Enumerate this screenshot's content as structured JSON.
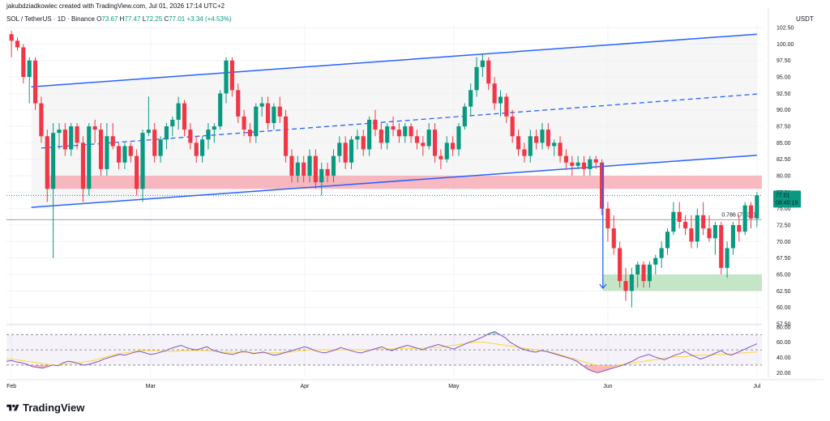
{
  "header": {
    "creator_line": "jakubdziadkowiec created with TradingView.com, Jul 01, 2026 17:14 UTC+2",
    "symbol": "SOL / TetherUS · 1D · Binance",
    "ohlc": [
      {
        "label": "O",
        "value": "73.67"
      },
      {
        "label": "H",
        "value": "77.47"
      },
      {
        "label": "L",
        "value": "72.25"
      },
      {
        "label": "C",
        "value": "77.01"
      }
    ],
    "change": "+3.34 (+4.53%)",
    "currency": "USDT"
  },
  "footer": {
    "logo_text": "TradingView"
  },
  "colors": {
    "up": "#089981",
    "down": "#f23645",
    "trendline": "#2962ff",
    "resistance_zone": "#f7a8b0",
    "support_zone": "#b7dfb9",
    "rsi_line": "#7e57c2",
    "rsi_ma": "#fdd835"
  },
  "chart_data": [
    {
      "type": "candlestick",
      "yticks": [
        "102.50",
        "100.00",
        "97.50",
        "95.00",
        "92.50",
        "90.00",
        "87.50",
        "85.00",
        "82.50",
        "80.00",
        "77.50",
        "75.00",
        "72.50",
        "70.00",
        "67.50",
        "65.00",
        "62.50",
        "60.00",
        "57.50"
      ],
      "ylim": [
        57.5,
        103
      ],
      "xticks": [
        "Feb",
        "Mar",
        "Apr",
        "May",
        "Jun",
        "Jul"
      ],
      "last_price": {
        "price": "77.01",
        "countdown": "08:45:15",
        "value": 77.01
      },
      "fib_level": {
        "label": "0.786 (73.31)",
        "value": 73.31
      },
      "zones": [
        {
          "kind": "resistance",
          "from": 78.0,
          "to": 80.0
        },
        {
          "kind": "support",
          "from": 62.5,
          "to": 65.0
        }
      ],
      "channel": {
        "upper": [
          {
            "date": "2026-02-05",
            "price": 93.5
          },
          {
            "date": "2026-07-01",
            "price": 101.5
          }
        ],
        "middle": [
          {
            "date": "2026-02-07",
            "price": 84.2
          },
          {
            "date": "2026-07-01",
            "price": 92.4
          }
        ],
        "lower": [
          {
            "date": "2026-02-05",
            "price": 75.2
          },
          {
            "date": "2026-07-01",
            "price": 83.1
          }
        ]
      },
      "target_arrow": {
        "date": "2026-05-31",
        "from": 82.0,
        "to": 62.9
      },
      "candles": [
        {
          "o": 101.5,
          "h": 102,
          "l": 98,
          "c": 100.5
        },
        {
          "o": 100.5,
          "h": 101,
          "l": 99,
          "c": 99.5
        },
        {
          "o": 99.5,
          "h": 100,
          "l": 94,
          "c": 95
        },
        {
          "o": 95,
          "h": 98,
          "l": 91,
          "c": 97.5
        },
        {
          "o": 97.5,
          "h": 98,
          "l": 90,
          "c": 91
        },
        {
          "o": 91,
          "h": 92,
          "l": 85,
          "c": 86
        },
        {
          "o": 86,
          "h": 87,
          "l": 76,
          "c": 78
        },
        {
          "o": 78,
          "h": 88,
          "l": 67.5,
          "c": 86.5
        },
        {
          "o": 86.5,
          "h": 88,
          "l": 84,
          "c": 87
        },
        {
          "o": 87,
          "h": 88,
          "l": 83,
          "c": 84
        },
        {
          "o": 84,
          "h": 88,
          "l": 83,
          "c": 87.5
        },
        {
          "o": 87.5,
          "h": 88,
          "l": 84,
          "c": 85
        },
        {
          "o": 85,
          "h": 86,
          "l": 76,
          "c": 78
        },
        {
          "o": 78,
          "h": 88,
          "l": 77,
          "c": 87.5
        },
        {
          "o": 87.5,
          "h": 88.5,
          "l": 85,
          "c": 87
        },
        {
          "o": 87,
          "h": 88,
          "l": 80,
          "c": 81
        },
        {
          "o": 81,
          "h": 88,
          "l": 80,
          "c": 86
        },
        {
          "o": 86,
          "h": 88,
          "l": 84,
          "c": 84.5
        },
        {
          "o": 84.5,
          "h": 85,
          "l": 81,
          "c": 82
        },
        {
          "o": 82,
          "h": 85,
          "l": 81,
          "c": 84.5
        },
        {
          "o": 84.5,
          "h": 85,
          "l": 82,
          "c": 83
        },
        {
          "o": 83,
          "h": 84,
          "l": 77,
          "c": 78
        },
        {
          "o": 78,
          "h": 87,
          "l": 76,
          "c": 86.5
        },
        {
          "o": 86.5,
          "h": 92,
          "l": 86,
          "c": 87
        },
        {
          "o": 87,
          "h": 88,
          "l": 82,
          "c": 83
        },
        {
          "o": 83,
          "h": 86,
          "l": 82,
          "c": 85.5
        },
        {
          "o": 85.5,
          "h": 88,
          "l": 84,
          "c": 87.5
        },
        {
          "o": 87.5,
          "h": 89,
          "l": 86,
          "c": 88.5
        },
        {
          "o": 88.5,
          "h": 92,
          "l": 87,
          "c": 91
        },
        {
          "o": 91,
          "h": 91.5,
          "l": 86,
          "c": 87
        },
        {
          "o": 87,
          "h": 88,
          "l": 84,
          "c": 85
        },
        {
          "o": 85,
          "h": 86,
          "l": 82,
          "c": 83
        },
        {
          "o": 83,
          "h": 86,
          "l": 82,
          "c": 85.5
        },
        {
          "o": 85.5,
          "h": 88,
          "l": 84,
          "c": 87
        },
        {
          "o": 87,
          "h": 88,
          "l": 85,
          "c": 87.5
        },
        {
          "o": 87.5,
          "h": 93,
          "l": 87,
          "c": 92.5
        },
        {
          "o": 92.5,
          "h": 98,
          "l": 91,
          "c": 97.5
        },
        {
          "o": 97.5,
          "h": 98,
          "l": 92,
          "c": 93
        },
        {
          "o": 93,
          "h": 94,
          "l": 88,
          "c": 89
        },
        {
          "o": 89,
          "h": 90,
          "l": 86,
          "c": 87
        },
        {
          "o": 87,
          "h": 88,
          "l": 85,
          "c": 86
        },
        {
          "o": 86,
          "h": 91,
          "l": 85,
          "c": 90.5
        },
        {
          "o": 90.5,
          "h": 92,
          "l": 89,
          "c": 91
        },
        {
          "o": 91,
          "h": 92,
          "l": 87,
          "c": 88
        },
        {
          "o": 88,
          "h": 91,
          "l": 87,
          "c": 90.5
        },
        {
          "o": 90.5,
          "h": 92,
          "l": 88,
          "c": 89
        },
        {
          "o": 89,
          "h": 90,
          "l": 82,
          "c": 83
        },
        {
          "o": 83,
          "h": 84,
          "l": 79,
          "c": 80
        },
        {
          "o": 80,
          "h": 83,
          "l": 79,
          "c": 82
        },
        {
          "o": 82,
          "h": 83,
          "l": 79,
          "c": 80
        },
        {
          "o": 80,
          "h": 84,
          "l": 79,
          "c": 83
        },
        {
          "o": 83,
          "h": 84,
          "l": 78,
          "c": 79
        },
        {
          "o": 79,
          "h": 82,
          "l": 77,
          "c": 81
        },
        {
          "o": 81,
          "h": 82,
          "l": 79,
          "c": 80
        },
        {
          "o": 80,
          "h": 84,
          "l": 79,
          "c": 83
        },
        {
          "o": 83,
          "h": 86,
          "l": 82,
          "c": 85
        },
        {
          "o": 85,
          "h": 86,
          "l": 81,
          "c": 82
        },
        {
          "o": 82,
          "h": 86,
          "l": 81,
          "c": 85.5
        },
        {
          "o": 85.5,
          "h": 87,
          "l": 84,
          "c": 86
        },
        {
          "o": 86,
          "h": 87,
          "l": 83,
          "c": 84
        },
        {
          "o": 84,
          "h": 89,
          "l": 83,
          "c": 88.5
        },
        {
          "o": 88.5,
          "h": 90,
          "l": 86,
          "c": 87
        },
        {
          "o": 87,
          "h": 88,
          "l": 84,
          "c": 85
        },
        {
          "o": 85,
          "h": 88,
          "l": 84,
          "c": 87.5
        },
        {
          "o": 87.5,
          "h": 89,
          "l": 86,
          "c": 87
        },
        {
          "o": 87,
          "h": 88,
          "l": 85,
          "c": 86
        },
        {
          "o": 86,
          "h": 88,
          "l": 85,
          "c": 87.5
        },
        {
          "o": 87.5,
          "h": 88,
          "l": 85,
          "c": 86
        },
        {
          "o": 86,
          "h": 87,
          "l": 84,
          "c": 85
        },
        {
          "o": 85,
          "h": 86,
          "l": 83,
          "c": 84.5
        },
        {
          "o": 84.5,
          "h": 88,
          "l": 84,
          "c": 87
        },
        {
          "o": 87,
          "h": 88,
          "l": 82,
          "c": 83
        },
        {
          "o": 83,
          "h": 84,
          "l": 81,
          "c": 82.5
        },
        {
          "o": 82.5,
          "h": 86,
          "l": 82,
          "c": 85
        },
        {
          "o": 85,
          "h": 86,
          "l": 83,
          "c": 84
        },
        {
          "o": 84,
          "h": 88,
          "l": 83,
          "c": 87.5
        },
        {
          "o": 87.5,
          "h": 91,
          "l": 87,
          "c": 90.5
        },
        {
          "o": 90.5,
          "h": 94,
          "l": 89,
          "c": 93
        },
        {
          "o": 93,
          "h": 98,
          "l": 92,
          "c": 96.5
        },
        {
          "o": 96.5,
          "h": 98.5,
          "l": 95,
          "c": 97.5
        },
        {
          "o": 97.5,
          "h": 98,
          "l": 93,
          "c": 94
        },
        {
          "o": 94,
          "h": 95,
          "l": 90,
          "c": 91
        },
        {
          "o": 91,
          "h": 93,
          "l": 89,
          "c": 92
        },
        {
          "o": 92,
          "h": 92.5,
          "l": 88,
          "c": 89
        },
        {
          "o": 89,
          "h": 90,
          "l": 85,
          "c": 86
        },
        {
          "o": 86,
          "h": 87,
          "l": 83,
          "c": 84
        },
        {
          "o": 84,
          "h": 85,
          "l": 82,
          "c": 83
        },
        {
          "o": 83,
          "h": 87,
          "l": 82,
          "c": 86
        },
        {
          "o": 86,
          "h": 87,
          "l": 84,
          "c": 85
        },
        {
          "o": 85,
          "h": 88,
          "l": 84,
          "c": 87
        },
        {
          "o": 87,
          "h": 88,
          "l": 84,
          "c": 84.5
        },
        {
          "o": 84.5,
          "h": 85.5,
          "l": 83,
          "c": 85
        },
        {
          "o": 85,
          "h": 86,
          "l": 82,
          "c": 83
        },
        {
          "o": 83,
          "h": 84,
          "l": 81,
          "c": 82
        },
        {
          "o": 82,
          "h": 83,
          "l": 80,
          "c": 81.5
        },
        {
          "o": 81.5,
          "h": 83,
          "l": 81,
          "c": 82
        },
        {
          "o": 82,
          "h": 83,
          "l": 80,
          "c": 81
        },
        {
          "o": 81,
          "h": 83,
          "l": 80,
          "c": 82.5
        },
        {
          "o": 82.5,
          "h": 83,
          "l": 81,
          "c": 82
        },
        {
          "o": 82,
          "h": 82.5,
          "l": 74,
          "c": 75
        },
        {
          "o": 75,
          "h": 76,
          "l": 70,
          "c": 72
        },
        {
          "o": 72,
          "h": 74,
          "l": 68,
          "c": 69
        },
        {
          "o": 69,
          "h": 70,
          "l": 63,
          "c": 64
        },
        {
          "o": 64,
          "h": 66,
          "l": 61,
          "c": 62.5
        },
        {
          "o": 62.5,
          "h": 66,
          "l": 60,
          "c": 65
        },
        {
          "o": 65,
          "h": 67,
          "l": 63,
          "c": 66.5
        },
        {
          "o": 66.5,
          "h": 67,
          "l": 63,
          "c": 64
        },
        {
          "o": 64,
          "h": 67,
          "l": 63,
          "c": 66.5
        },
        {
          "o": 66.5,
          "h": 68,
          "l": 65,
          "c": 67.5
        },
        {
          "o": 67.5,
          "h": 70,
          "l": 66,
          "c": 69
        },
        {
          "o": 69,
          "h": 72,
          "l": 68,
          "c": 71.5
        },
        {
          "o": 71.5,
          "h": 76,
          "l": 71,
          "c": 74.5
        },
        {
          "o": 74.5,
          "h": 76,
          "l": 72,
          "c": 73
        },
        {
          "o": 73,
          "h": 74,
          "l": 71,
          "c": 72
        },
        {
          "o": 72,
          "h": 74,
          "l": 69,
          "c": 70
        },
        {
          "o": 70,
          "h": 75,
          "l": 69,
          "c": 74
        },
        {
          "o": 74,
          "h": 76,
          "l": 71,
          "c": 72
        },
        {
          "o": 72,
          "h": 74,
          "l": 70,
          "c": 70.5
        },
        {
          "o": 70.5,
          "h": 73,
          "l": 68,
          "c": 72.5
        },
        {
          "o": 72.5,
          "h": 73,
          "l": 65,
          "c": 66
        },
        {
          "o": 66,
          "h": 70,
          "l": 64.5,
          "c": 69
        },
        {
          "o": 69,
          "h": 73,
          "l": 68,
          "c": 72.5
        },
        {
          "o": 72.5,
          "h": 74,
          "l": 70,
          "c": 71.5
        },
        {
          "o": 71.5,
          "h": 76,
          "l": 71,
          "c": 75.5
        },
        {
          "o": 75.5,
          "h": 76,
          "l": 72,
          "c": 73.5
        },
        {
          "o": 73.5,
          "h": 77.5,
          "l": 72.2,
          "c": 77
        }
      ]
    },
    {
      "type": "line",
      "name": "RSI",
      "yticks": [
        "80.00",
        "60.00",
        "40.00",
        "20.00"
      ],
      "ylim": [
        14,
        82
      ],
      "bands": [
        70,
        50,
        30
      ],
      "rsi": [
        35,
        36,
        34,
        33,
        31,
        28,
        27,
        26,
        28,
        30,
        29,
        33,
        35,
        34,
        32,
        30,
        31,
        33,
        35,
        38,
        40,
        42,
        44,
        43,
        45,
        47,
        48,
        46,
        44,
        45,
        47,
        49,
        52,
        54,
        56,
        53,
        51,
        50,
        52,
        54,
        50,
        48,
        46,
        45,
        44,
        46,
        48,
        47,
        45,
        46,
        47,
        45,
        43,
        44,
        46,
        48,
        50,
        52,
        54,
        52,
        49,
        47,
        46,
        48,
        50,
        53,
        51,
        49,
        47,
        46,
        48,
        50,
        52,
        54,
        51,
        49,
        52,
        54,
        56,
        54,
        52,
        50,
        53,
        55,
        57,
        55,
        53,
        51,
        54,
        57,
        60,
        62,
        65,
        68,
        72,
        74,
        70,
        66,
        60,
        56,
        52,
        50,
        48,
        47,
        49,
        48,
        46,
        44,
        42,
        40,
        38,
        35,
        30,
        25,
        22,
        20,
        22,
        24,
        26,
        28,
        30,
        33,
        36,
        40,
        42,
        44,
        41,
        39,
        37,
        40,
        43,
        45,
        48,
        44,
        41,
        38,
        40,
        43,
        46,
        49,
        45,
        43,
        46,
        49,
        52,
        55,
        58
      ],
      "rsi_ma": [
        38,
        38,
        37,
        36,
        35,
        34,
        33,
        32,
        31,
        30,
        30,
        31,
        32,
        33,
        33,
        34,
        35,
        36,
        38,
        40,
        42,
        44,
        45,
        46,
        47,
        48,
        49,
        49,
        49,
        49,
        48,
        48,
        48,
        48,
        49,
        49,
        49,
        49,
        49,
        49,
        48,
        48,
        47,
        47,
        47,
        47,
        47,
        47,
        46,
        46,
        46,
        46,
        46,
        46,
        47,
        47,
        48,
        49,
        49,
        50,
        50,
        50,
        50,
        50,
        50,
        50,
        50,
        50,
        50,
        50,
        50,
        50,
        51,
        51,
        51,
        51,
        52,
        52,
        52,
        52,
        52,
        52,
        53,
        53,
        53,
        54,
        55,
        56,
        57,
        58,
        59,
        60,
        60,
        60,
        59,
        58,
        57,
        56,
        55,
        54,
        53,
        52,
        51,
        50,
        49,
        48,
        47,
        45,
        43,
        41,
        39,
        37,
        35,
        33,
        31,
        30,
        29,
        29,
        29,
        30,
        31,
        32,
        33,
        34,
        35,
        36,
        37,
        38,
        39,
        40,
        41,
        41,
        41,
        42,
        43,
        43,
        43,
        43,
        44,
        44,
        44,
        45,
        45,
        46,
        46,
        47,
        47
      ]
    }
  ]
}
